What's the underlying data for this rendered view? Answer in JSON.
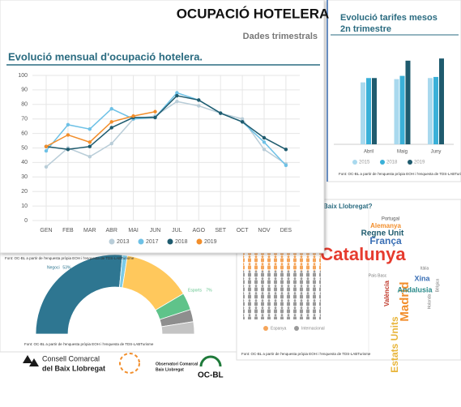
{
  "header": {
    "title": "OCUPACIÓ HOTELERA",
    "subtitle": "Dades trimestrals"
  },
  "chart_data": [
    {
      "type": "line",
      "title": "Evolució mensual d'ocupació hotelera.",
      "categories": [
        "GEN",
        "FEB",
        "MAR",
        "ABR",
        "MAI",
        "JUN",
        "JUL",
        "AGO",
        "SET",
        "OCT",
        "NOV",
        "DES"
      ],
      "series": [
        {
          "name": "2013",
          "color": "#b9cdd8",
          "values": [
            37,
            50,
            44,
            53,
            70,
            72,
            82,
            79,
            74,
            70,
            49,
            39
          ]
        },
        {
          "name": "2017",
          "color": "#6ec1e6",
          "values": [
            48,
            66,
            63,
            77,
            70,
            71,
            88,
            83,
            74,
            68,
            54,
            38
          ]
        },
        {
          "name": "2018",
          "color": "#1f5b6e",
          "values": [
            51,
            49,
            51,
            64,
            71,
            71,
            86,
            83,
            74,
            68,
            57,
            49
          ]
        },
        {
          "name": "2019",
          "color": "#f28e2b",
          "values": [
            51,
            59,
            54,
            68,
            72,
            75,
            null,
            null,
            null,
            null,
            null,
            null
          ]
        }
      ],
      "ylim": [
        0,
        100
      ],
      "yticks": [
        0,
        10,
        20,
        30,
        40,
        50,
        60,
        70,
        80,
        90,
        100
      ],
      "grid": true,
      "legend": "bottom",
      "source": "Font: OC-BL a partir de l'enquesta pròpia EOH i l'enquesta de TDS-LABTurisme"
    },
    {
      "type": "bar",
      "title": [
        "Evolució tarifes mesos",
        "2n trimestre"
      ],
      "categories": [
        "Abril",
        "Maig",
        "Juny"
      ],
      "series": [
        {
          "name": "2015",
          "color": "#a9d9ee",
          "values": [
            57,
            60,
            61
          ]
        },
        {
          "name": "2018",
          "color": "#3ab0d8",
          "values": [
            61,
            63,
            62
          ]
        },
        {
          "name": "2019",
          "color": "#1f5b6e",
          "values": [
            61,
            77,
            79
          ]
        }
      ],
      "ylim": [
        0,
        100
      ],
      "legend": "bottom",
      "source": "Font: OC-BL a partir de l'enquesta pròpia EOH i l'enquesta de TDS-LABTurisme"
    },
    {
      "type": "pie",
      "categories": [
        "Negoci",
        null,
        null,
        "Esports",
        null,
        null
      ],
      "values": [
        53,
        2,
        28,
        7,
        5,
        5
      ],
      "value_labels": [
        "53%",
        null,
        null,
        "7%",
        null,
        null
      ],
      "colors": [
        "#2e7691",
        "#7ccbe8",
        "#ffc85c",
        "#5fc38a",
        "#8e8e8e",
        "#c4c4c4"
      ],
      "source": "Font: OC-BL a partir de l'enquesta pròpia EOH i l'enquesta de TDS-LABTurisme"
    }
  ],
  "pictogram": {
    "title": "Baix Llobregat?",
    "legend": [
      "Espanya",
      "Internacional"
    ],
    "colors": [
      "#f5a55a",
      "#9a9a9a"
    ],
    "source": "Font: OC-BL a partir de l'enquesta pròpia EOH i l'enquesta de TDS-LABTurisme"
  },
  "word_cloud": {
    "words": [
      "Catalunya",
      "França",
      "Regne Unit",
      "Alemanya",
      "Portugal",
      "Madrid",
      "Estats Units",
      "Andalusia",
      "València",
      "Xina",
      "País Basc",
      "Itàlia",
      "Holanda",
      "Bèlgica"
    ]
  },
  "logos": [
    "Consell Comarcal",
    "del Baix Llobregat",
    "Observatori Comarcal",
    "Baix Llobregat",
    "OC-BL"
  ]
}
